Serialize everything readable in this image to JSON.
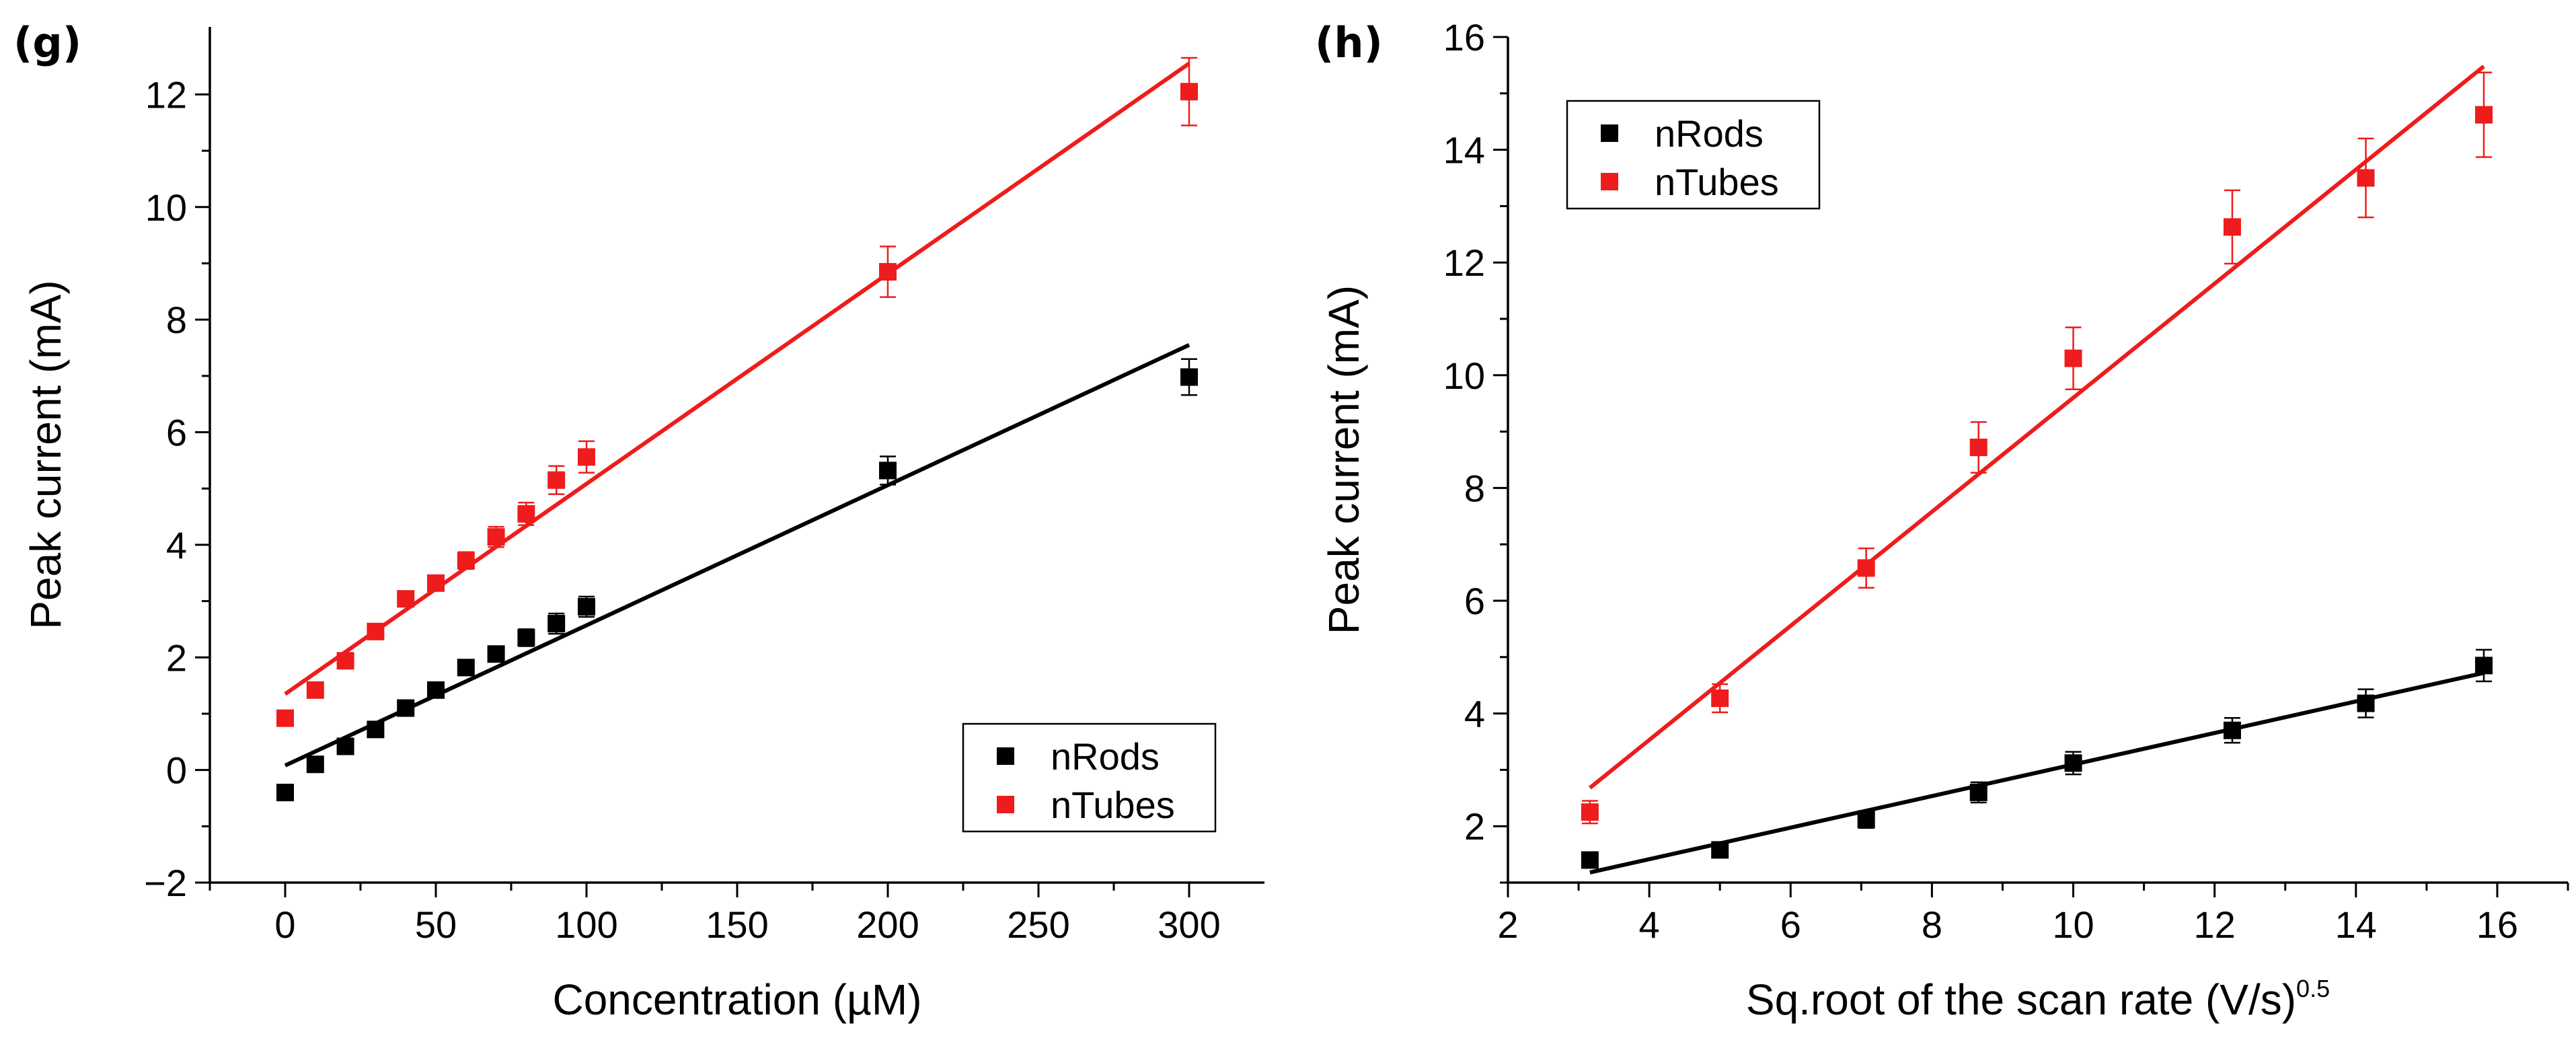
{
  "colors": {
    "nRods": "#000000",
    "nTubes": "#ee1c1c"
  },
  "chart_data": [
    {
      "panel": "(g)",
      "type": "scatter",
      "xlabel": "Concentration (µM)",
      "ylabel": "Peak current (mA)",
      "xlim": [
        -25,
        325
      ],
      "ylim": [
        -2,
        13.2
      ],
      "xticks_major": [
        0,
        50,
        100,
        150,
        200,
        250,
        300
      ],
      "xticks_minor": [
        -25,
        25,
        75,
        125,
        175,
        225,
        275
      ],
      "yticks_major": [
        -2,
        0,
        2,
        4,
        6,
        8,
        10,
        12
      ],
      "yticks_minor": [
        -1,
        1,
        3,
        5,
        7,
        9,
        11
      ],
      "legend_position": "lower-right",
      "series": [
        {
          "name": "nRods",
          "color": "#000000",
          "x": [
            0,
            10,
            20,
            30,
            40,
            50,
            60,
            70,
            80,
            90,
            100,
            200,
            300
          ],
          "y": [
            -0.4,
            0.1,
            0.42,
            0.72,
            1.1,
            1.42,
            1.82,
            2.06,
            2.35,
            2.6,
            2.9,
            5.32,
            6.98
          ],
          "err": [
            0.08,
            0.1,
            0.08,
            0.08,
            0.08,
            0.1,
            0.1,
            0.12,
            0.15,
            0.18,
            0.18,
            0.25,
            0.32
          ],
          "fit": {
            "x": [
              0,
              300
            ],
            "y": [
              0.08,
              7.55
            ]
          }
        },
        {
          "name": "nTubes",
          "color": "#ee1c1c",
          "x": [
            0,
            10,
            20,
            30,
            40,
            50,
            60,
            70,
            80,
            90,
            100,
            200,
            300
          ],
          "y": [
            0.92,
            1.42,
            1.94,
            2.46,
            3.04,
            3.32,
            3.72,
            4.14,
            4.55,
            5.15,
            5.56,
            8.85,
            12.05
          ],
          "err": [
            0.08,
            0.1,
            0.1,
            0.1,
            0.12,
            0.12,
            0.15,
            0.18,
            0.2,
            0.25,
            0.28,
            0.45,
            0.6
          ],
          "fit": {
            "x": [
              0,
              300
            ],
            "y": [
              1.35,
              12.55
            ]
          }
        }
      ]
    },
    {
      "panel": "(h)",
      "type": "scatter",
      "xlabel": "Sq.root of the scan rate (V/s)",
      "xlabel_superscript": "0.5",
      "ylabel": "Peak current (mA)",
      "xlim": [
        2,
        17
      ],
      "ylim": [
        1,
        16
      ],
      "xticks_major": [
        2,
        4,
        6,
        8,
        10,
        12,
        14,
        16
      ],
      "xticks_minor": [
        3,
        5,
        7,
        9,
        11,
        13,
        15,
        17
      ],
      "yticks_major": [
        2,
        4,
        6,
        8,
        10,
        12,
        14,
        16
      ],
      "yticks_minor": [
        1,
        3,
        5,
        7,
        9,
        11,
        13,
        15
      ],
      "legend_position": "top-left",
      "series": [
        {
          "name": "nRods",
          "color": "#000000",
          "x": [
            3.16,
            5.0,
            7.07,
            8.66,
            10.0,
            12.25,
            14.14,
            15.81
          ],
          "y": [
            1.4,
            1.58,
            2.12,
            2.6,
            3.12,
            3.7,
            4.18,
            4.85
          ],
          "err": [
            0.08,
            0.1,
            0.15,
            0.18,
            0.2,
            0.22,
            0.25,
            0.28
          ],
          "fit": {
            "x": [
              3.16,
              15.81
            ],
            "y": [
              1.18,
              4.72
            ]
          }
        },
        {
          "name": "nTubes",
          "color": "#ee1c1c",
          "x": [
            3.16,
            5.0,
            7.07,
            8.66,
            10.0,
            12.25,
            14.14,
            15.81
          ],
          "y": [
            2.25,
            4.27,
            6.58,
            8.72,
            10.3,
            12.63,
            13.5,
            14.62
          ],
          "err": [
            0.2,
            0.25,
            0.35,
            0.45,
            0.55,
            0.65,
            0.7,
            0.75
          ],
          "fit": {
            "x": [
              3.16,
              15.81
            ],
            "y": [
              2.68,
              15.48
            ]
          }
        }
      ]
    }
  ]
}
